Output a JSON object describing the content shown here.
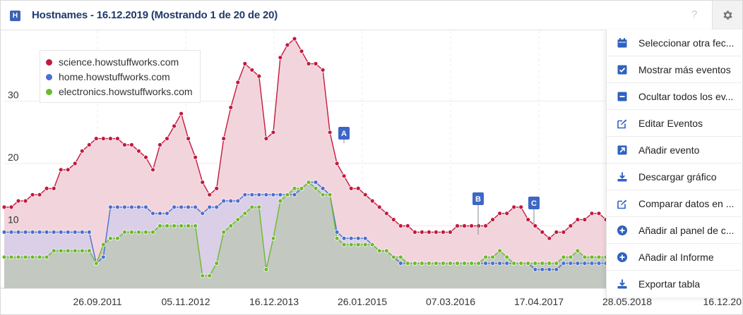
{
  "header": {
    "badge": "H",
    "title": "Hostnames - 16.12.2019 (Mostrando 1 de 20 de 20)",
    "help": "?",
    "settings_icon": "gear-icon"
  },
  "legend": {
    "items": [
      {
        "label": "science.howstuffworks.com",
        "color": "#c4193f"
      },
      {
        "label": "home.howstuffworks.com",
        "color": "#4b6fd0"
      },
      {
        "label": "electronics.howstuffworks.com",
        "color": "#6cba2c"
      }
    ]
  },
  "events": [
    {
      "label": "A"
    },
    {
      "label": "B"
    },
    {
      "label": "C"
    }
  ],
  "menu": {
    "items": [
      {
        "icon": "calendar-icon",
        "label": "Seleccionar otra fec..."
      },
      {
        "icon": "checkbox-icon",
        "label": "Mostrar más eventos"
      },
      {
        "icon": "minus-icon",
        "label": "Ocultar todos los ev..."
      },
      {
        "icon": "edit-icon",
        "label": "Editar Eventos"
      },
      {
        "icon": "arrow-icon",
        "label": "Añadir evento"
      },
      {
        "icon": "download-icon",
        "label": "Descargar gráfico"
      },
      {
        "icon": "edit-icon",
        "label": "Comparar datos en ..."
      },
      {
        "icon": "plus-circle-icon",
        "label": "Añadir al panel de c..."
      },
      {
        "icon": "plus-circle-icon",
        "label": "Añadir al Informe"
      },
      {
        "icon": "download-icon",
        "label": "Exportar tabla"
      }
    ]
  },
  "chart_data": {
    "type": "area",
    "x_tick_labels": [
      "26.09.2011",
      "05.11.2012",
      "16.12.2013",
      "26.01.2015",
      "07.03.2016",
      "17.04.2017",
      "28.05.2018",
      "16.12.20"
    ],
    "y_tick_labels": [
      "10",
      "20",
      "30"
    ],
    "ylim": [
      0,
      40
    ],
    "grid": true,
    "legend_position": "top-left",
    "series": [
      {
        "name": "science.howstuffworks.com",
        "color": "#c4193f",
        "values": [
          13,
          13,
          14,
          14,
          15,
          15,
          16,
          16,
          19,
          19,
          20,
          22,
          23,
          24,
          24,
          24,
          24,
          23,
          23,
          22,
          21,
          19,
          23,
          24,
          26,
          28,
          24,
          21,
          17,
          15,
          16,
          24,
          29,
          33,
          36,
          35,
          34,
          24,
          25,
          37,
          39,
          40,
          38,
          36,
          36,
          35,
          25,
          20,
          18,
          16,
          16,
          15,
          14,
          13,
          12,
          11,
          10,
          10,
          9,
          9,
          9,
          9,
          9,
          9,
          10,
          10,
          10,
          10,
          10,
          11,
          12,
          12,
          13,
          13,
          11,
          10,
          9,
          8,
          9,
          9,
          10,
          11,
          11,
          12,
          12,
          11
        ]
      },
      {
        "name": "home.howstuffworks.com",
        "color": "#4b6fd0",
        "values": [
          9,
          9,
          9,
          9,
          9,
          9,
          9,
          9,
          9,
          9,
          9,
          9,
          9,
          4,
          5,
          13,
          13,
          13,
          13,
          13,
          13,
          12,
          12,
          12,
          13,
          13,
          13,
          13,
          12,
          13,
          13,
          14,
          14,
          14,
          15,
          15,
          15,
          15,
          15,
          15,
          15,
          15,
          16,
          17,
          17,
          16,
          15,
          9,
          8,
          8,
          8,
          8,
          7,
          6,
          6,
          5,
          4,
          4,
          4,
          4,
          4,
          4,
          4,
          4,
          4,
          4,
          4,
          4,
          4,
          4,
          4,
          4,
          4,
          4,
          4,
          3,
          3,
          3,
          3,
          4,
          4,
          4,
          4,
          4,
          4,
          4
        ]
      },
      {
        "name": "electronics.howstuffworks.com",
        "color": "#6cba2c",
        "values": [
          5,
          5,
          5,
          5,
          5,
          5,
          5,
          6,
          6,
          6,
          6,
          6,
          6,
          4,
          7,
          8,
          8,
          9,
          9,
          9,
          9,
          9,
          10,
          10,
          10,
          10,
          10,
          10,
          2,
          2,
          4,
          9,
          10,
          11,
          12,
          13,
          13,
          3,
          8,
          14,
          15,
          16,
          16,
          17,
          16,
          15,
          15,
          8,
          7,
          7,
          7,
          7,
          7,
          6,
          6,
          5,
          5,
          4,
          4,
          4,
          4,
          4,
          4,
          4,
          4,
          4,
          4,
          4,
          5,
          5,
          6,
          5,
          4,
          4,
          4,
          4,
          4,
          4,
          4,
          5,
          5,
          6,
          5,
          5,
          5,
          5
        ]
      }
    ]
  }
}
